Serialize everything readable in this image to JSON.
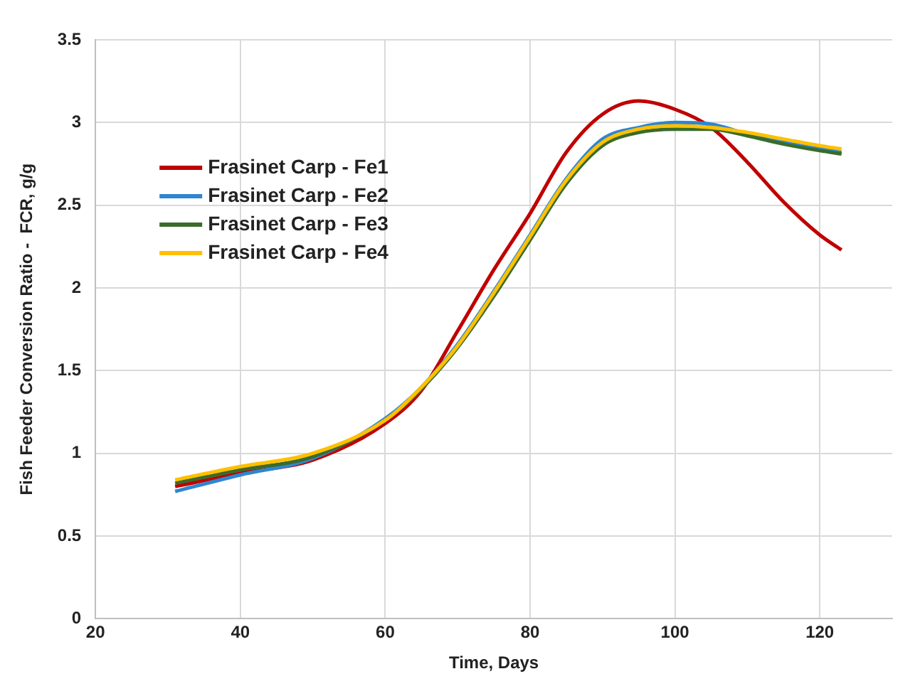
{
  "chart_data": {
    "type": "line",
    "xlabel": "Time, Days",
    "ylabel": "Fish Feeder Conversion Ratio -  FCR, g/g",
    "x": [
      31,
      40,
      50,
      60,
      65,
      70,
      75,
      80,
      85,
      90,
      95,
      100,
      105,
      110,
      115,
      120,
      123
    ],
    "series": [
      {
        "name": "Frasinet Carp - Fe1",
        "color": "#c00000",
        "values": [
          0.8,
          0.88,
          0.96,
          1.18,
          1.38,
          1.74,
          2.11,
          2.45,
          2.82,
          3.05,
          3.13,
          3.08,
          2.97,
          2.76,
          2.52,
          2.32,
          2.23
        ]
      },
      {
        "name": "Frasinet Carp - Fe2",
        "color": "#2e86d0",
        "values": [
          0.77,
          0.87,
          0.97,
          1.21,
          1.4,
          1.66,
          1.98,
          2.32,
          2.66,
          2.9,
          2.97,
          3.0,
          2.99,
          2.93,
          2.88,
          2.84,
          2.82
        ]
      },
      {
        "name": "Frasinet Carp - Fe3",
        "color": "#3a6b2a",
        "values": [
          0.82,
          0.9,
          0.98,
          1.2,
          1.39,
          1.64,
          1.95,
          2.29,
          2.63,
          2.86,
          2.94,
          2.96,
          2.96,
          2.92,
          2.87,
          2.83,
          2.81
        ]
      },
      {
        "name": "Frasinet Carp - Fe4",
        "color": "#ffc000",
        "values": [
          0.84,
          0.92,
          1.0,
          1.2,
          1.4,
          1.65,
          1.97,
          2.31,
          2.65,
          2.88,
          2.96,
          2.98,
          2.97,
          2.94,
          2.9,
          2.86,
          2.84
        ]
      }
    ],
    "xlim": [
      20,
      130
    ],
    "xticks": [
      20,
      40,
      60,
      80,
      100,
      120
    ],
    "ylim": [
      0,
      3.5
    ],
    "yticks": [
      0,
      0.5,
      1,
      1.5,
      2,
      2.5,
      3,
      3.5
    ],
    "grid": true,
    "legend": "top left",
    "marker": "none",
    "line_style": "solid"
  }
}
